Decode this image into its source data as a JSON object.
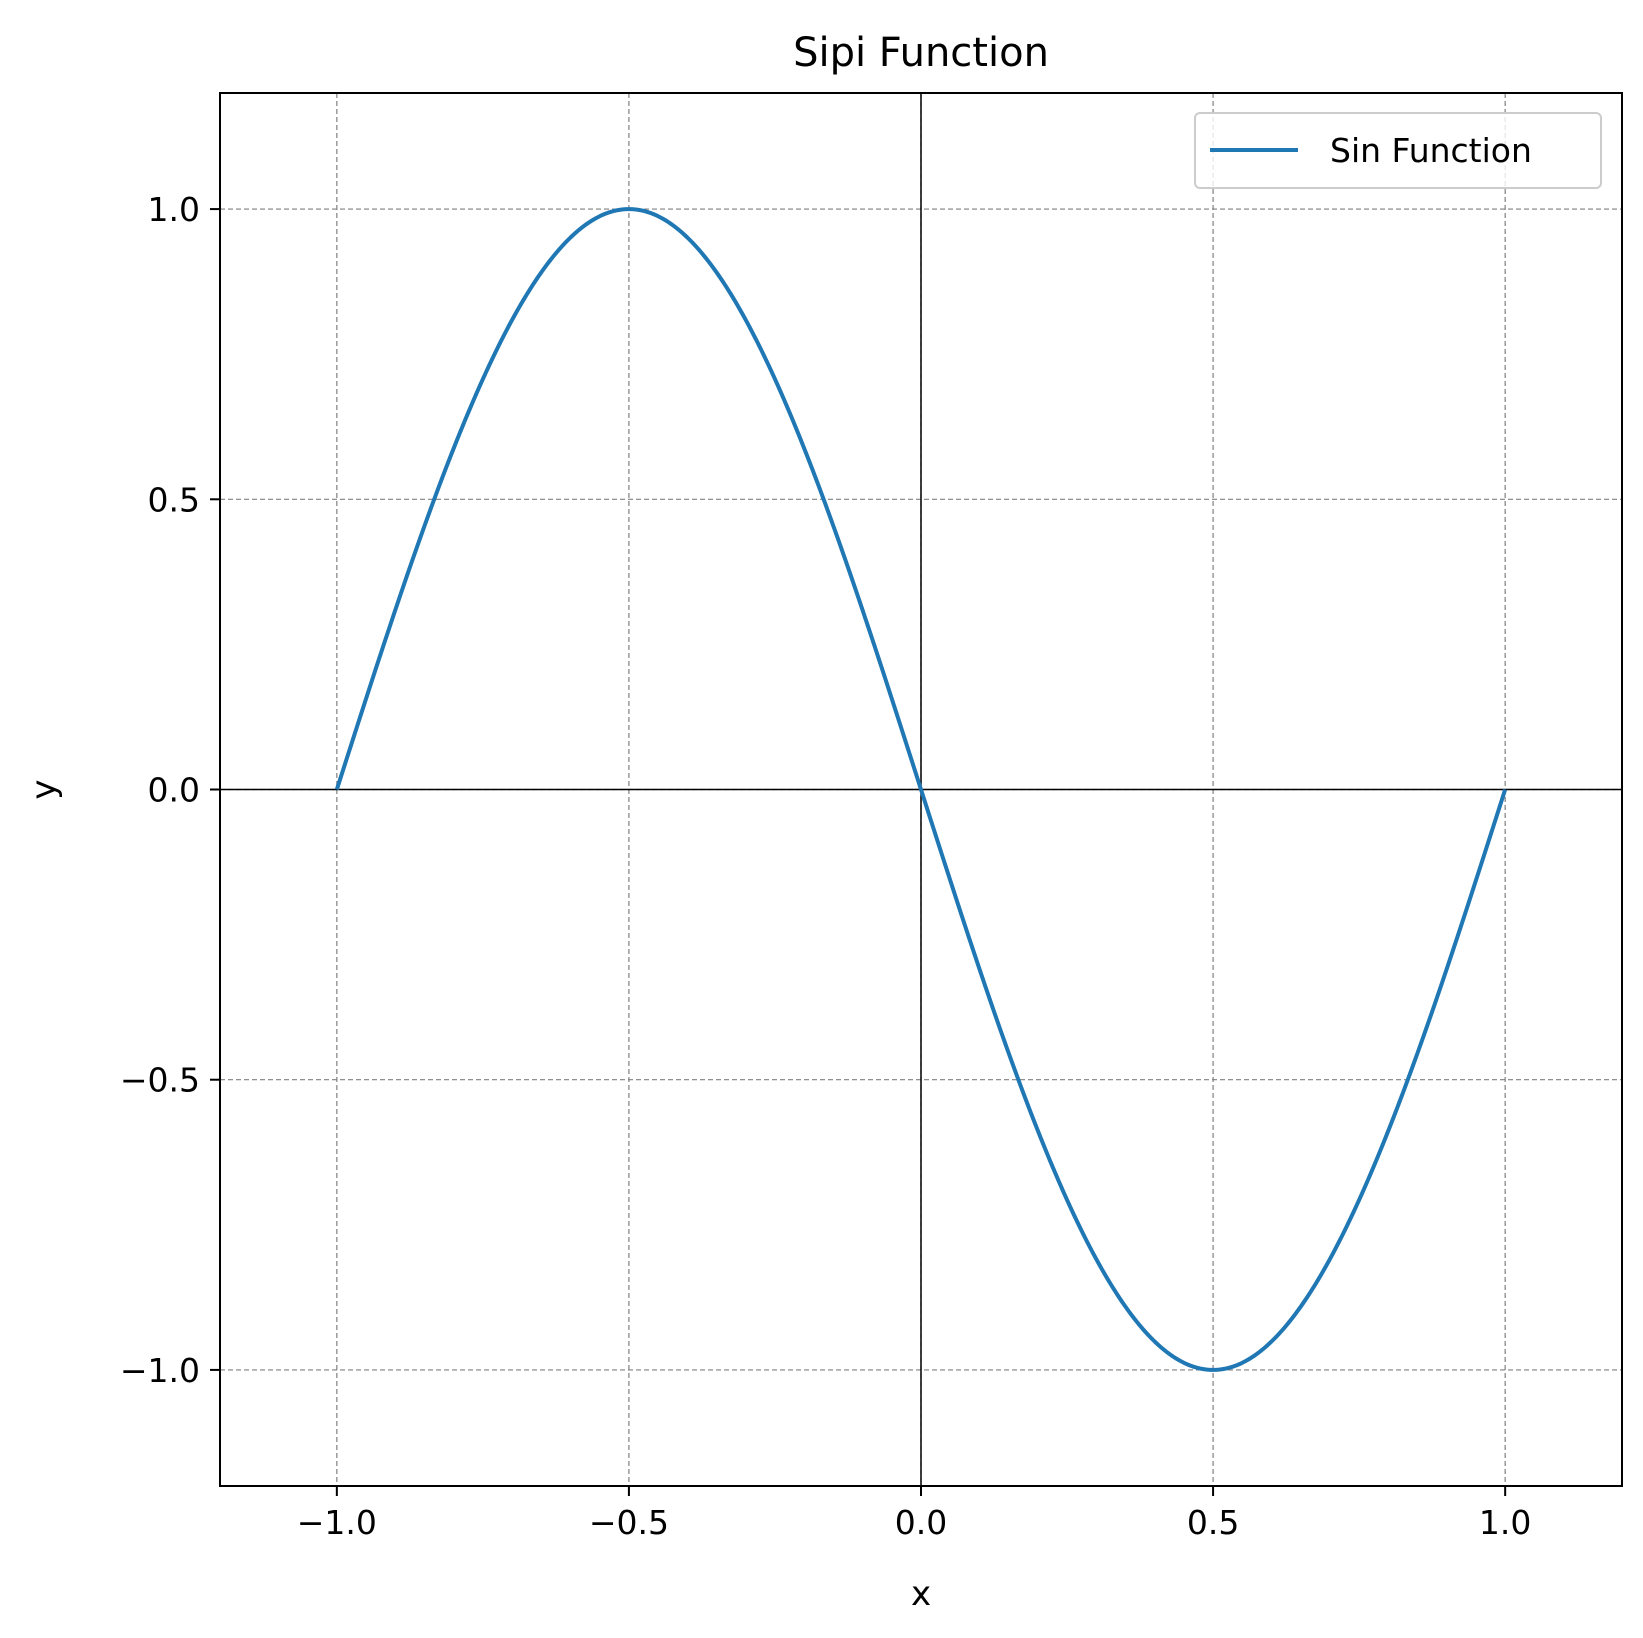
{
  "chart_data": {
    "type": "line",
    "title": "Sipi Function",
    "xlabel": "x",
    "ylabel": "y",
    "xlim": [
      -1.2,
      1.2
    ],
    "ylim": [
      -1.2,
      1.2
    ],
    "x_ticks": [
      -1.0,
      -0.5,
      0.0,
      0.5,
      1.0
    ],
    "y_ticks": [
      -1.0,
      -0.5,
      0.0,
      0.5,
      1.0
    ],
    "x_tick_labels": [
      "−1.0",
      "−0.5",
      "0.0",
      "0.5",
      "1.0"
    ],
    "y_tick_labels": [
      "−1.0",
      "−0.5",
      "0.0",
      "0.5",
      "1.0"
    ],
    "grid": true,
    "legend_position": "top-right",
    "series": [
      {
        "name": "Sin Function",
        "color": "#1f77b4",
        "x": [
          -1.0,
          -0.9,
          -0.8,
          -0.7,
          -0.6,
          -0.5,
          -0.4,
          -0.3,
          -0.2,
          -0.1,
          0.0,
          0.1,
          0.2,
          0.3,
          0.4,
          0.5,
          0.6,
          0.7,
          0.8,
          0.9,
          1.0
        ],
        "y": [
          0.0,
          0.309,
          0.588,
          0.809,
          0.951,
          1.0,
          0.951,
          0.809,
          0.588,
          0.309,
          0.0,
          -0.309,
          -0.588,
          -0.809,
          -0.951,
          -1.0,
          -0.951,
          -0.809,
          -0.588,
          -0.309,
          0.0
        ]
      }
    ]
  }
}
